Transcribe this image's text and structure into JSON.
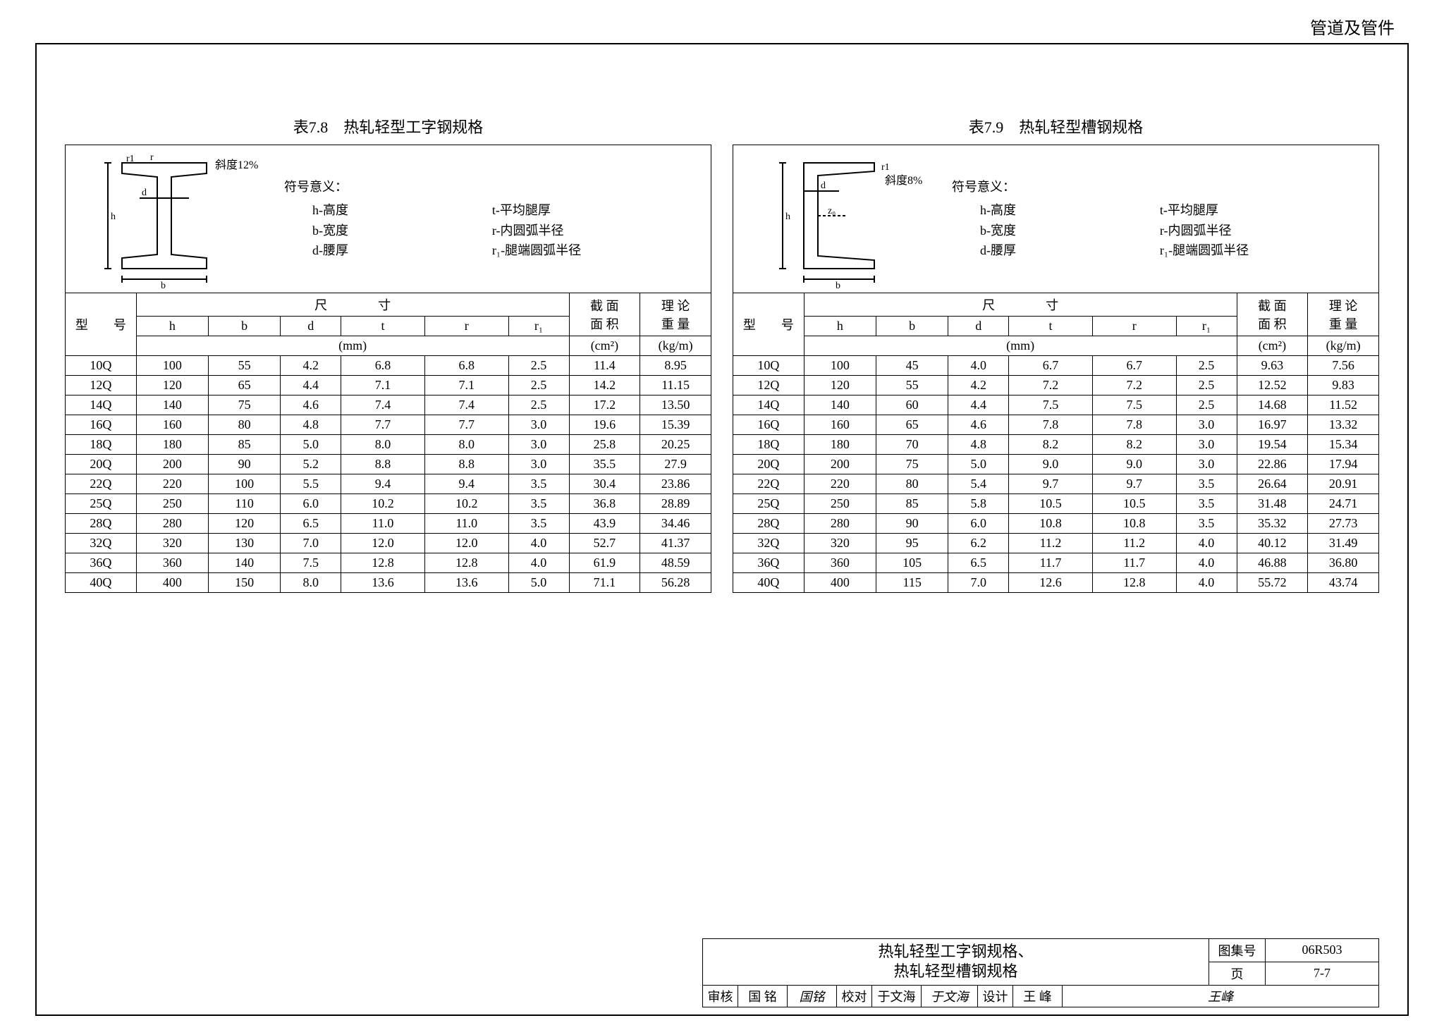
{
  "header": {
    "category": "管道及管件"
  },
  "left": {
    "title": "表7.8　热轧轻型工字钢规格",
    "slope": "斜度12%",
    "legend_title": "符号意义：",
    "legend": {
      "h": "h-高度",
      "t": "t-平均腿厚",
      "b": "b-宽度",
      "r": "r-内圆弧半径",
      "d": "d-腰厚",
      "r1": "r₁-腿端圆弧半径"
    },
    "columns": {
      "model": "型　　号",
      "dim": "尺　　　　寸",
      "unit": "(mm)",
      "h": "h",
      "b": "b",
      "d": "d",
      "t": "t",
      "r": "r",
      "r1": "r₁",
      "area": "截 面\n面 积",
      "area_unit": "(cm²)",
      "weight": "理 论\n重 量",
      "weight_unit": "(kg/m)"
    },
    "rows": [
      [
        "10Q",
        "100",
        "55",
        "4.2",
        "6.8",
        "6.8",
        "2.5",
        "11.4",
        "8.95"
      ],
      [
        "12Q",
        "120",
        "65",
        "4.4",
        "7.1",
        "7.1",
        "2.5",
        "14.2",
        "11.15"
      ],
      [
        "14Q",
        "140",
        "75",
        "4.6",
        "7.4",
        "7.4",
        "2.5",
        "17.2",
        "13.50"
      ],
      [
        "16Q",
        "160",
        "80",
        "4.8",
        "7.7",
        "7.7",
        "3.0",
        "19.6",
        "15.39"
      ],
      [
        "18Q",
        "180",
        "85",
        "5.0",
        "8.0",
        "8.0",
        "3.0",
        "25.8",
        "20.25"
      ],
      [
        "20Q",
        "200",
        "90",
        "5.2",
        "8.8",
        "8.8",
        "3.0",
        "35.5",
        "27.9"
      ],
      [
        "22Q",
        "220",
        "100",
        "5.5",
        "9.4",
        "9.4",
        "3.5",
        "30.4",
        "23.86"
      ],
      [
        "25Q",
        "250",
        "110",
        "6.0",
        "10.2",
        "10.2",
        "3.5",
        "36.8",
        "28.89"
      ],
      [
        "28Q",
        "280",
        "120",
        "6.5",
        "11.0",
        "11.0",
        "3.5",
        "43.9",
        "34.46"
      ],
      [
        "32Q",
        "320",
        "130",
        "7.0",
        "12.0",
        "12.0",
        "4.0",
        "52.7",
        "41.37"
      ],
      [
        "36Q",
        "360",
        "140",
        "7.5",
        "12.8",
        "12.8",
        "4.0",
        "61.9",
        "48.59"
      ],
      [
        "40Q",
        "400",
        "150",
        "8.0",
        "13.6",
        "13.6",
        "5.0",
        "71.1",
        "56.28"
      ]
    ]
  },
  "right": {
    "title": "表7.9　热轧轻型槽钢规格",
    "slope": "斜度8%",
    "legend_title": "符号意义：",
    "legend": {
      "h": "h-高度",
      "t": "t-平均腿厚",
      "b": "b-宽度",
      "r": "r-内圆弧半径",
      "d": "d-腰厚",
      "r1": "r₁-腿端圆弧半径"
    },
    "columns": {
      "model": "型　　号",
      "dim": "尺　　　　寸",
      "unit": "(mm)",
      "h": "h",
      "b": "b",
      "d": "d",
      "t": "t",
      "r": "r",
      "r1": "r₁",
      "area": "截 面\n面 积",
      "area_unit": "(cm²)",
      "weight": "理 论\n重 量",
      "weight_unit": "(kg/m)"
    },
    "rows": [
      [
        "10Q",
        "100",
        "45",
        "4.0",
        "6.7",
        "6.7",
        "2.5",
        "9.63",
        "7.56"
      ],
      [
        "12Q",
        "120",
        "55",
        "4.2",
        "7.2",
        "7.2",
        "2.5",
        "12.52",
        "9.83"
      ],
      [
        "14Q",
        "140",
        "60",
        "4.4",
        "7.5",
        "7.5",
        "2.5",
        "14.68",
        "11.52"
      ],
      [
        "16Q",
        "160",
        "65",
        "4.6",
        "7.8",
        "7.8",
        "3.0",
        "16.97",
        "13.32"
      ],
      [
        "18Q",
        "180",
        "70",
        "4.8",
        "8.2",
        "8.2",
        "3.0",
        "19.54",
        "15.34"
      ],
      [
        "20Q",
        "200",
        "75",
        "5.0",
        "9.0",
        "9.0",
        "3.0",
        "22.86",
        "17.94"
      ],
      [
        "22Q",
        "220",
        "80",
        "5.4",
        "9.7",
        "9.7",
        "3.5",
        "26.64",
        "20.91"
      ],
      [
        "25Q",
        "250",
        "85",
        "5.8",
        "10.5",
        "10.5",
        "3.5",
        "31.48",
        "24.71"
      ],
      [
        "28Q",
        "280",
        "90",
        "6.0",
        "10.8",
        "10.8",
        "3.5",
        "35.32",
        "27.73"
      ],
      [
        "32Q",
        "320",
        "95",
        "6.2",
        "11.2",
        "11.2",
        "4.0",
        "40.12",
        "31.49"
      ],
      [
        "36Q",
        "360",
        "105",
        "6.5",
        "11.7",
        "11.7",
        "4.0",
        "46.88",
        "36.80"
      ],
      [
        "40Q",
        "400",
        "115",
        "7.0",
        "12.6",
        "12.8",
        "4.0",
        "55.72",
        "43.74"
      ]
    ]
  },
  "titleblock": {
    "title1": "热轧轻型工字钢规格、",
    "title2": "热轧轻型槽钢规格",
    "atlas_lbl": "图集号",
    "atlas_val": "06R503",
    "page_lbl": "页",
    "page_val": "7-7",
    "review_lbl": "审核",
    "review_name": "国 铭",
    "review_sig": "国铭",
    "check_lbl": "校对",
    "check_name": "于文海",
    "check_sig": "于文海",
    "design_lbl": "设计",
    "design_name": "王 峰",
    "design_sig": "王峰"
  },
  "style": {
    "text_color": "#000000",
    "bg_color": "#ffffff",
    "border_color": "#000000",
    "font_size_body": 18,
    "font_size_title": 22
  }
}
